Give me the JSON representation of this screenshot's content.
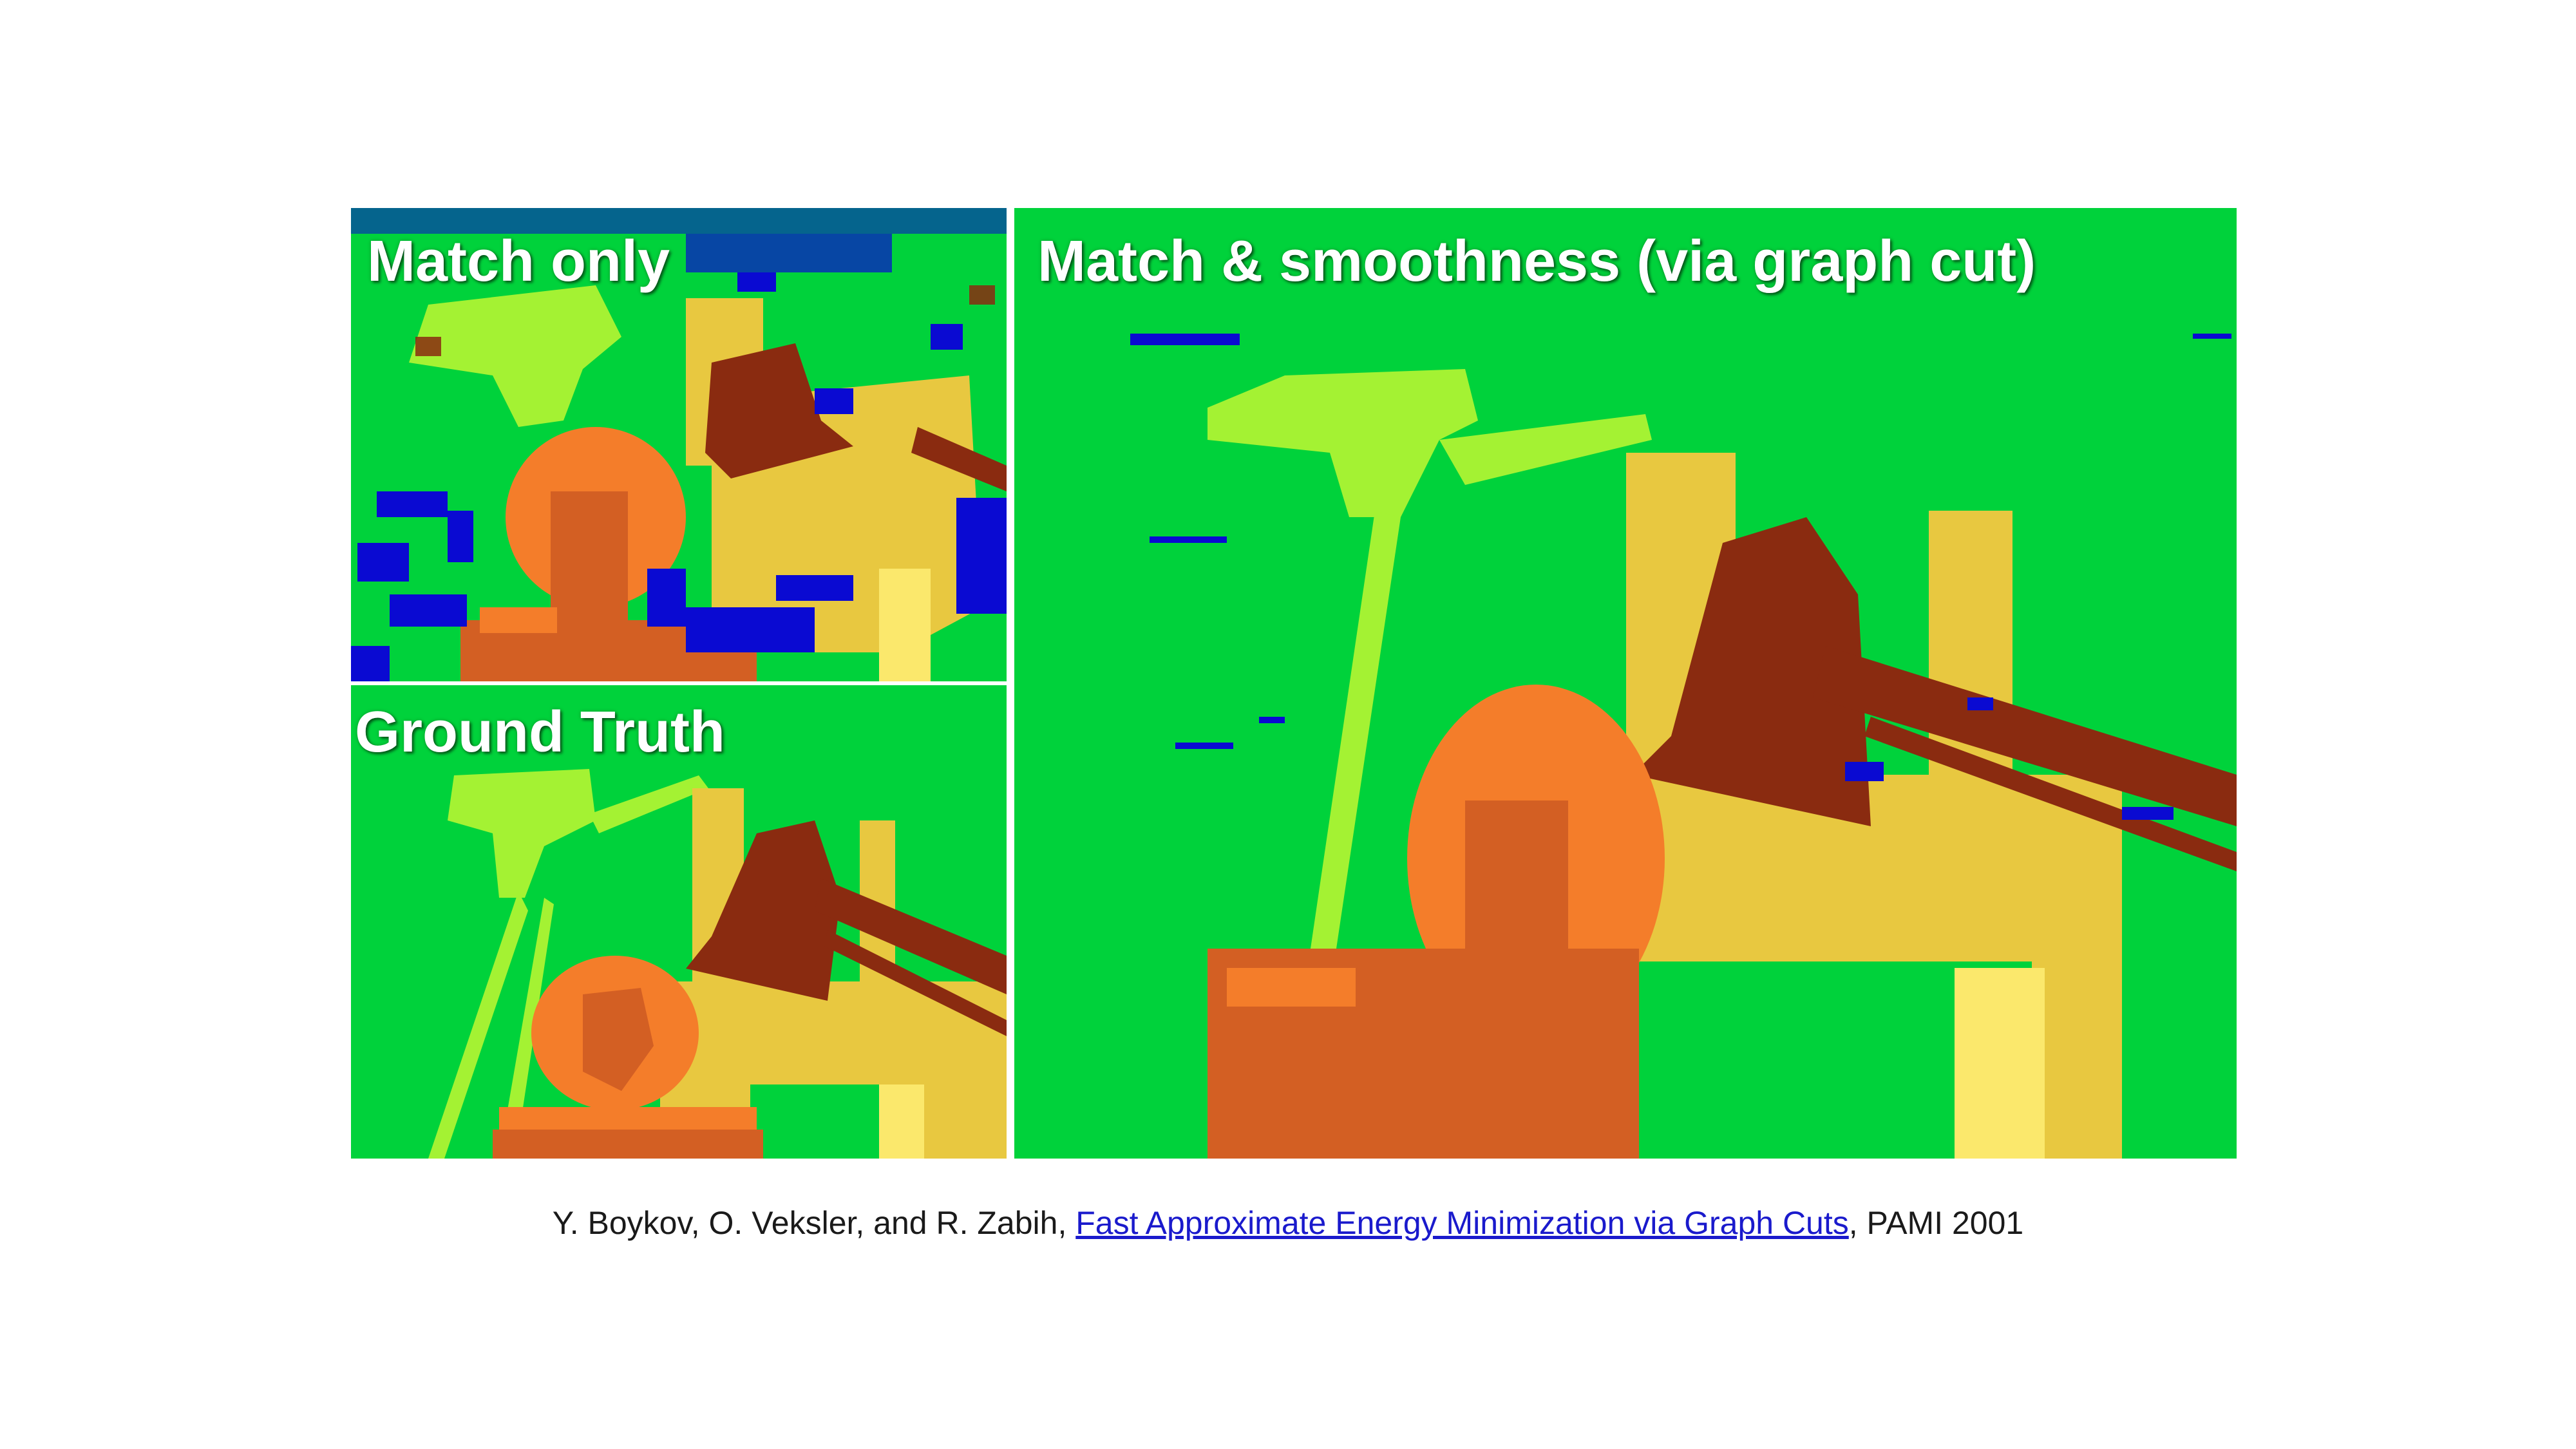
{
  "panels": {
    "match_only": {
      "label": "Match only"
    },
    "ground_truth": {
      "label": "Ground Truth"
    },
    "graph_cut": {
      "label": "Match & smoothness (via graph cut)"
    }
  },
  "citation": {
    "authors": "Y. Boykov, O. Veksler, and R. Zabih,",
    "paper_link": "Fast Approximate Energy Minimization via Graph Cuts",
    "venue": ",  PAMI 2001"
  },
  "colors": {
    "background_green": "#00d23b",
    "light_green": "#a4f233",
    "yellow": "#e8c840",
    "pale_yellow": "#fbe86c",
    "orange": "#f47d2a",
    "dark_orange": "#d35f23",
    "brown": "#8a2b10",
    "noise_blue": "#0a0ad2",
    "link_blue": "#1a1acc"
  }
}
